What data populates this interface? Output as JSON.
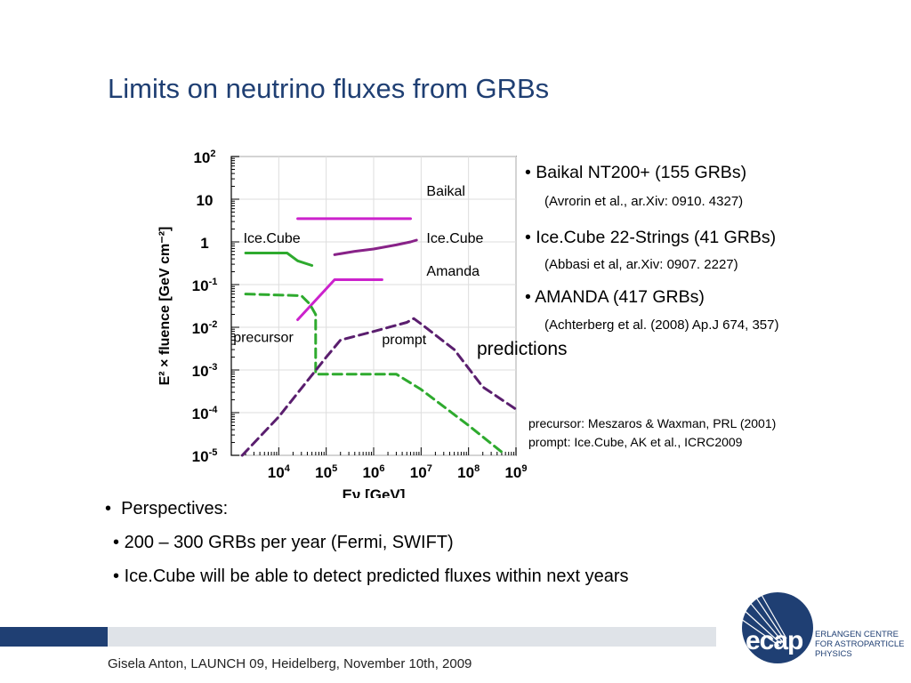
{
  "slide": {
    "title": "Limits on neutrino fluxes from GRBs",
    "accent_color": "#1f3f73"
  },
  "legend_items": [
    {
      "bullet": "•",
      "name": "Baikal NT200+ (155 GRBs)",
      "ref": "(Avrorin et al., ar.Xiv: 0910. 4327)"
    },
    {
      "bullet": "•",
      "name": "Ice.Cube 22-Strings (41 GRBs)",
      "ref": "(Abbasi et al, ar.Xiv: 0907. 2227)"
    },
    {
      "bullet": "•",
      "name": "AMANDA (417 GRBs)",
      "ref": "(Achterberg et al. (2008) Ap.J 674, 357)"
    }
  ],
  "predictions_label": "predictions",
  "citations": {
    "precursor_label": "precursor:",
    "precursor_ref": "Meszaros & Waxman, PRL (2001)",
    "prompt_label": "prompt:",
    "prompt_ref": "Ice.Cube, AK et al., ICRC2009"
  },
  "perspectives": {
    "heading_bullet": "•",
    "heading": "Perspectives:",
    "items": [
      {
        "bullet": "•",
        "text": "200 – 300 GRBs per year (Fermi, SWIFT)"
      },
      {
        "bullet": "•",
        "text": "Ice.Cube will be able to detect predicted fluxes within next years"
      }
    ]
  },
  "footer": {
    "text": "Gisela Anton,   LAUNCH 09,   Heidelberg,  November 10th, 2009"
  },
  "logo": {
    "mark": "ecap",
    "line1": "ERLANGEN CENTRE",
    "line2": "FOR ASTROPARTICLE",
    "line3": "PHYSICS",
    "color": "#1f3f73"
  },
  "chart_data": {
    "type": "line",
    "xlabel": "Eν [GeV]",
    "ylabel": "E² × fluence [GeV cm⁻²]",
    "x_scale": "log",
    "y_scale": "log",
    "xlim": [
      1000,
      1000000000
    ],
    "ylim": [
      1e-05,
      100
    ],
    "x_ticks": [
      {
        "value": 10000,
        "base": "10",
        "exp": "4"
      },
      {
        "value": 100000,
        "base": "10",
        "exp": "5"
      },
      {
        "value": 1000000,
        "base": "10",
        "exp": "6"
      },
      {
        "value": 10000000,
        "base": "10",
        "exp": "7"
      },
      {
        "value": 100000000,
        "base": "10",
        "exp": "8"
      },
      {
        "value": 1000000000,
        "base": "10",
        "exp": "9"
      }
    ],
    "y_ticks": [
      {
        "value": 100,
        "base": "10",
        "exp": "2"
      },
      {
        "value": 10,
        "base": "10",
        "exp": ""
      },
      {
        "value": 1,
        "base": "1",
        "exp": ""
      },
      {
        "value": 0.1,
        "base": "10",
        "exp": "-1"
      },
      {
        "value": 0.01,
        "base": "10",
        "exp": "-2"
      },
      {
        "value": 0.001,
        "base": "10",
        "exp": "-3"
      },
      {
        "value": 0.0001,
        "base": "10",
        "exp": "-4"
      },
      {
        "value": 1e-05,
        "base": "10",
        "exp": "-5"
      }
    ],
    "grid": true,
    "series": [
      {
        "name": "Baikal",
        "color": "#cc22cc",
        "dash": "solid",
        "width": 3,
        "label_at": [
          13000000,
          12
        ],
        "points": [
          [
            25000,
            3.5
          ],
          [
            6000000,
            3.5
          ]
        ]
      },
      {
        "name": "Ice.Cube",
        "color": "#2eaa2e",
        "dash": "solid",
        "width": 3,
        "label_at": [
          1800,
          0.95
        ],
        "points": [
          [
            2000,
            0.55
          ],
          [
            15000,
            0.55
          ],
          [
            25000,
            0.36
          ],
          [
            50000,
            0.28
          ]
        ]
      },
      {
        "name": "Ice.Cube",
        "color": "#882288",
        "dash": "solid",
        "width": 3,
        "label_at": [
          13000000,
          0.95
        ],
        "points": [
          [
            150000,
            0.5
          ],
          [
            400000,
            0.6
          ],
          [
            1000000,
            0.68
          ],
          [
            3000000,
            0.85
          ],
          [
            6000000,
            1.0
          ],
          [
            8000000,
            1.1
          ]
        ]
      },
      {
        "name": "Amanda",
        "color": "#cc22cc",
        "dash": "solid",
        "width": 3,
        "label_at": [
          13000000,
          0.16
        ],
        "points": [
          [
            25000,
            0.015
          ],
          [
            150000,
            0.13
          ],
          [
            1500000,
            0.13
          ]
        ]
      },
      {
        "name": "precursor",
        "color": "#2eaa2e",
        "dash": "dashed",
        "width": 3,
        "label_at": [
          1100,
          0.0045
        ],
        "points": [
          [
            2000,
            0.06
          ],
          [
            30000,
            0.055
          ],
          [
            45000,
            0.035
          ],
          [
            60000,
            0.02
          ],
          [
            60000,
            0.0008
          ],
          [
            3000000,
            0.0008
          ],
          [
            10000000,
            0.00035
          ],
          [
            100000000,
            5e-05
          ],
          [
            500000000,
            1.2e-05
          ]
        ]
      },
      {
        "name": "prompt",
        "color": "#5a1e6e",
        "dash": "dashed",
        "width": 3,
        "label_at": [
          1500000,
          0.004
        ],
        "points": [
          [
            1700,
            1e-05
          ],
          [
            10000,
            8e-05
          ],
          [
            100000,
            0.002
          ],
          [
            200000,
            0.005
          ],
          [
            1000000,
            0.008
          ],
          [
            5000000,
            0.013
          ],
          [
            7000000,
            0.016
          ],
          [
            10000000,
            0.012
          ],
          [
            50000000,
            0.003
          ],
          [
            200000000,
            0.0004
          ],
          [
            1000000000,
            0.00012
          ]
        ]
      }
    ]
  }
}
